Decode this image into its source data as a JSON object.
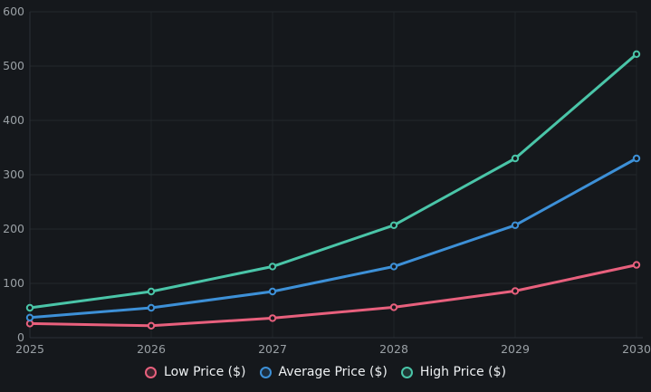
{
  "chart_data": {
    "type": "line",
    "x": [
      "2025",
      "2026",
      "2027",
      "2028",
      "2029",
      "2030"
    ],
    "series": [
      {
        "name": "Low Price ($)",
        "color": "#e8607d",
        "values": [
          26,
          22,
          36,
          56,
          86,
          134
        ]
      },
      {
        "name": "Average Price ($)",
        "color": "#3d90d7",
        "values": [
          37,
          55,
          85,
          131,
          207,
          330
        ]
      },
      {
        "name": "High Price ($)",
        "color": "#4ac5a8",
        "values": [
          55,
          85,
          131,
          207,
          330,
          522
        ]
      }
    ],
    "title": "",
    "xlabel": "",
    "ylabel": "",
    "ylim": [
      0,
      600
    ],
    "yticks": [
      0,
      100,
      200,
      300,
      400,
      500,
      600
    ],
    "grid": true,
    "legend_position": "bottom"
  },
  "theme": {
    "background": "#15181c",
    "grid_color_h": "#24282d",
    "grid_color_v": "#1f2327",
    "axis_color": "#2c3137",
    "tick_label_color": "#9aa0a5",
    "legend_text_color": "#eef1f3"
  }
}
